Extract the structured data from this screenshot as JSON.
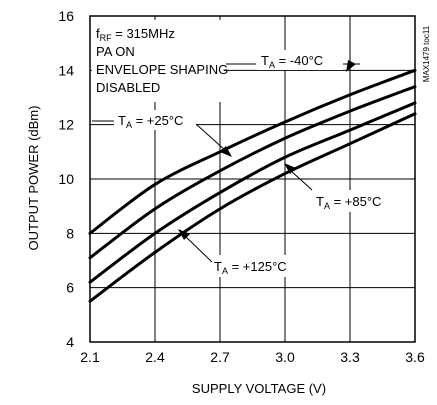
{
  "chart_data": {
    "type": "line",
    "xlabel": "SUPPLY VOLTAGE (V)",
    "ylabel": "OUTPUT POWER (dBm)",
    "xlim": [
      2.1,
      3.6
    ],
    "ylim": [
      4,
      16
    ],
    "xticks": [
      "2.1",
      "2.4",
      "2.7",
      "3.0",
      "3.3",
      "3.6"
    ],
    "yticks": [
      "4",
      "6",
      "8",
      "10",
      "12",
      "14",
      "16"
    ],
    "grid": true,
    "conditions": [
      "f",
      "RF",
      " = 315MHz",
      "PA ON",
      "ENVELOPE SHAPING",
      "DISABLED"
    ],
    "side_label": "MAX1479 toc11",
    "x": [
      2.1,
      2.4,
      2.7,
      3.0,
      3.3,
      3.6
    ],
    "series": [
      {
        "name": "T_A = -40°C",
        "values": [
          8.0,
          9.8,
          11.0,
          12.1,
          13.1,
          14.0
        ]
      },
      {
        "name": "T_A = +25°C",
        "values": [
          7.1,
          8.9,
          10.3,
          11.5,
          12.5,
          13.4
        ]
      },
      {
        "name": "T_A = +85°C",
        "values": [
          6.2,
          8.0,
          9.5,
          10.8,
          11.8,
          12.8
        ]
      },
      {
        "name": "T_A = +125°C",
        "values": [
          5.5,
          7.3,
          8.9,
          10.2,
          11.3,
          12.4
        ]
      }
    ],
    "annotations": [
      {
        "prefix": "T",
        "sub": "A",
        "suffix": " = -40°C"
      },
      {
        "prefix": "T",
        "sub": "A",
        "suffix": " = +25°C"
      },
      {
        "prefix": "T",
        "sub": "A",
        "suffix": " = +85°C"
      },
      {
        "prefix": "T",
        "sub": "A",
        "suffix": " = +125°C"
      }
    ]
  }
}
